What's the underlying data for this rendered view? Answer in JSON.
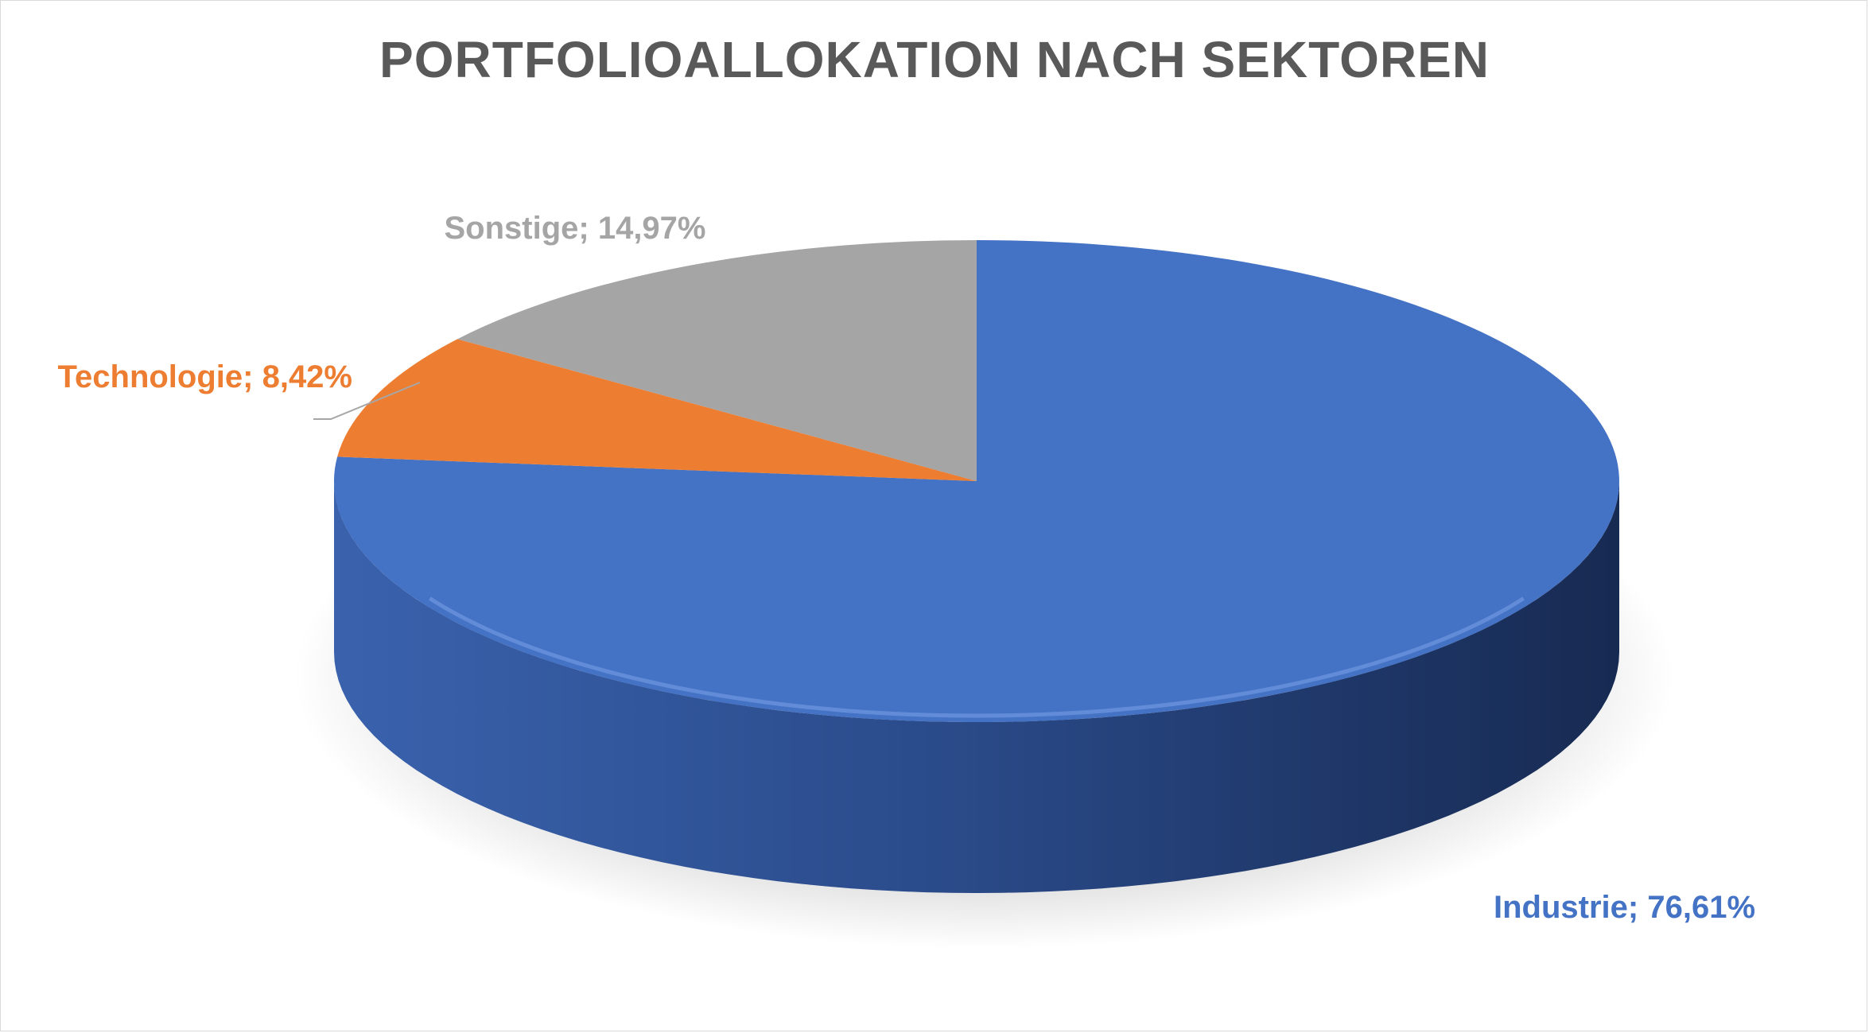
{
  "chart_data": {
    "type": "pie",
    "title": "PORTFOLIOALLOKATION NACH SEKTOREN",
    "slices": [
      {
        "name": "Industrie",
        "value": 76.61,
        "label": "Industrie; 76,61%",
        "color": "#4472C4"
      },
      {
        "name": "Technologie",
        "value": 8.42,
        "label": "Technologie; 8,42%",
        "color": "#ED7D31"
      },
      {
        "name": "Sonstige",
        "value": 14.97,
        "label": "Sonstige; 14,97%",
        "color": "#A5A5A5"
      }
    ],
    "style": "3d",
    "start_angle": "12 o'clock",
    "direction": "clockwise",
    "legend": "none"
  },
  "colors": {
    "title": "#595959",
    "frame": "#d9d9d9",
    "leader_line": "#a6a6a6"
  }
}
